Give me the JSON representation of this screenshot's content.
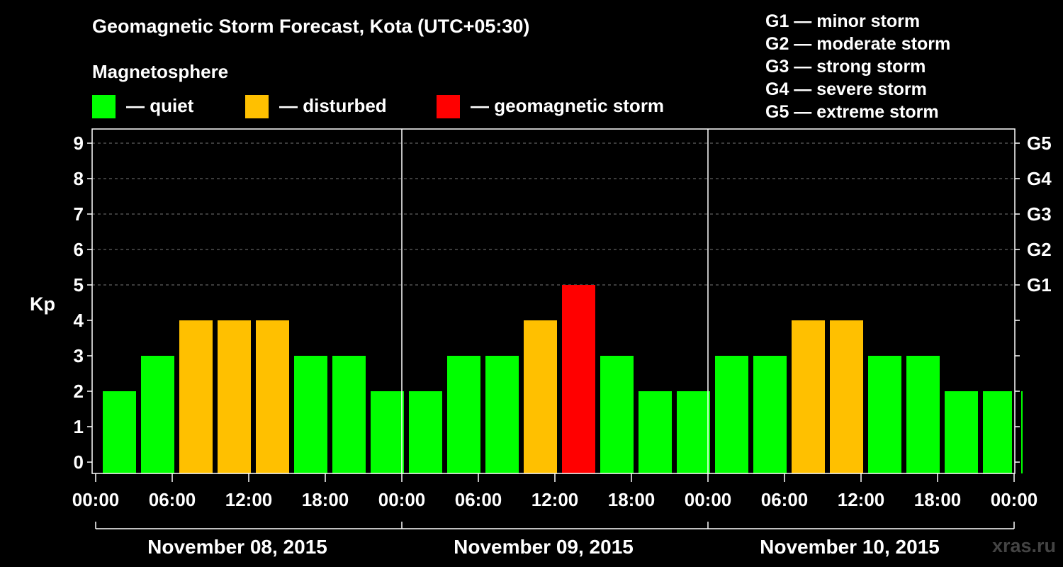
{
  "title": "Geomagnetic Storm Forecast, Kota (UTC+05:30)",
  "legend": {
    "heading": "Magnetosphere",
    "items": [
      {
        "label": "— quiet",
        "color": "#00ff00"
      },
      {
        "label": "— disturbed",
        "color": "#ffc000"
      },
      {
        "label": "— geomagnetic storm",
        "color": "#ff0000"
      }
    ]
  },
  "g_scale": [
    "G1 — minor storm",
    "G2 — moderate storm",
    "G3 — strong storm",
    "G4 — severe storm",
    "G5 — extreme storm"
  ],
  "credit": "xras.ru",
  "chart_data": {
    "type": "bar",
    "title": "Geomagnetic Storm Forecast, Kota (UTC+05:30)",
    "ylabel": "Kp",
    "ylim": [
      0,
      9
    ],
    "y_ticks": [
      0,
      1,
      2,
      3,
      4,
      5,
      6,
      7,
      8,
      9
    ],
    "right_axis_labels": [
      {
        "kp": 5,
        "label": "G1"
      },
      {
        "kp": 6,
        "label": "G2"
      },
      {
        "kp": 7,
        "label": "G3"
      },
      {
        "kp": 8,
        "label": "G4"
      },
      {
        "kp": 9,
        "label": "G5"
      }
    ],
    "x_tick_labels": [
      "00:00",
      "06:00",
      "12:00",
      "18:00",
      "00:00",
      "06:00",
      "12:00",
      "18:00",
      "00:00",
      "06:00",
      "12:00",
      "18:00",
      "00:00"
    ],
    "days": [
      "November 08, 2015",
      "November 09, 2015",
      "November 10, 2015"
    ],
    "interval_hours": 3,
    "first_bar_start_hour": 0.5,
    "values": [
      2,
      3,
      4,
      4,
      4,
      3,
      3,
      2,
      2,
      3,
      3,
      4,
      5,
      3,
      2,
      2,
      3,
      3,
      4,
      4,
      3,
      3,
      2,
      2,
      2
    ],
    "color_rule": {
      "quiet_max": 3,
      "disturbed_max": 4,
      "quiet": "#00ff00",
      "disturbed": "#ffc000",
      "storm": "#ff0000"
    },
    "grid": true
  }
}
